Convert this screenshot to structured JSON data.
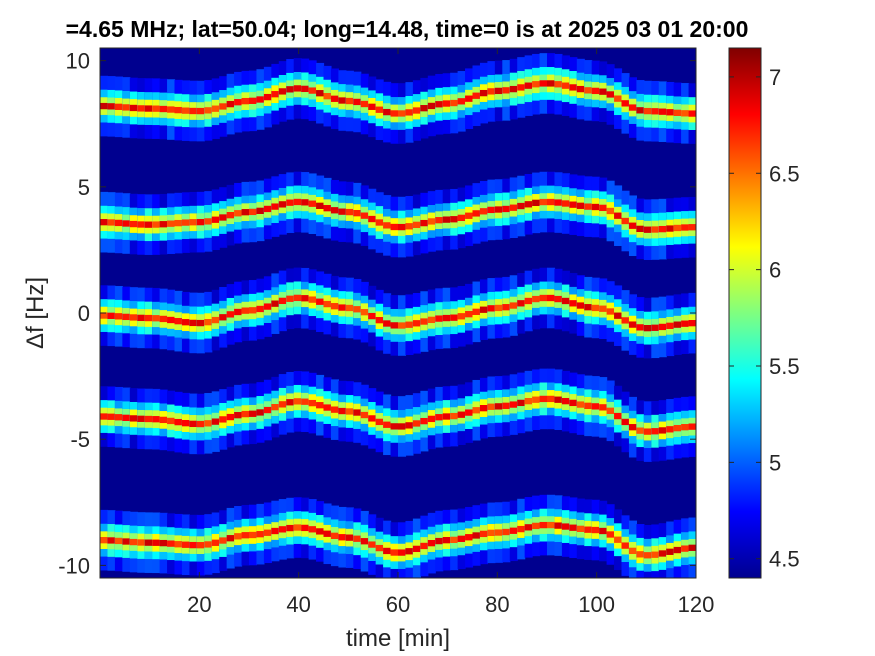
{
  "chart_data": {
    "type": "heatmap",
    "title": "=4.65 MHz;  lat=50.04; long=14.48, time=0 is at 2025 03 01 20:00",
    "xlabel": "time [min]",
    "ylabel": "Δf [Hz]",
    "xlim": [
      0,
      120
    ],
    "ylim": [
      -10.5,
      10.5
    ],
    "x_ticks": [
      20,
      40,
      60,
      80,
      100,
      120
    ],
    "y_ticks": [
      -10,
      -5,
      0,
      5,
      10
    ],
    "colorbar": {
      "colormap": "jet",
      "limits": [
        4.4,
        7.15
      ],
      "ticks": [
        4.5,
        5,
        5.5,
        6,
        6.5,
        7
      ]
    },
    "background_level": 4.4,
    "series": [
      {
        "values": [
          [
            0,
            8.2
          ],
          [
            10,
            8.1
          ],
          [
            20,
            8.0
          ],
          [
            30,
            8.4
          ],
          [
            40,
            8.9
          ],
          [
            50,
            8.4
          ],
          [
            60,
            7.9
          ],
          [
            70,
            8.3
          ],
          [
            80,
            8.8
          ],
          [
            90,
            9.1
          ],
          [
            100,
            8.8
          ],
          [
            110,
            8.0
          ],
          [
            120,
            7.9
          ]
        ]
      },
      {
        "values": [
          [
            0,
            3.6
          ],
          [
            10,
            3.5
          ],
          [
            20,
            3.6
          ],
          [
            30,
            4.0
          ],
          [
            40,
            4.4
          ],
          [
            50,
            4.0
          ],
          [
            60,
            3.4
          ],
          [
            70,
            3.7
          ],
          [
            80,
            4.1
          ],
          [
            90,
            4.4
          ],
          [
            100,
            4.2
          ],
          [
            110,
            3.3
          ],
          [
            120,
            3.4
          ]
        ]
      },
      {
        "values": [
          [
            0,
            -0.1
          ],
          [
            10,
            -0.2
          ],
          [
            20,
            -0.4
          ],
          [
            30,
            0.1
          ],
          [
            40,
            0.6
          ],
          [
            50,
            0.2
          ],
          [
            60,
            -0.5
          ],
          [
            70,
            -0.2
          ],
          [
            80,
            0.2
          ],
          [
            90,
            0.6
          ],
          [
            100,
            0.2
          ],
          [
            110,
            -0.6
          ],
          [
            120,
            -0.4
          ]
        ]
      },
      {
        "values": [
          [
            0,
            -4.1
          ],
          [
            10,
            -4.2
          ],
          [
            20,
            -4.4
          ],
          [
            30,
            -4.0
          ],
          [
            40,
            -3.5
          ],
          [
            50,
            -3.9
          ],
          [
            60,
            -4.5
          ],
          [
            70,
            -4.1
          ],
          [
            80,
            -3.7
          ],
          [
            90,
            -3.4
          ],
          [
            100,
            -3.7
          ],
          [
            110,
            -4.7
          ],
          [
            120,
            -4.5
          ]
        ]
      },
      {
        "values": [
          [
            0,
            -9.0
          ],
          [
            10,
            -9.1
          ],
          [
            20,
            -9.2
          ],
          [
            30,
            -8.8
          ],
          [
            40,
            -8.5
          ],
          [
            50,
            -8.9
          ],
          [
            60,
            -9.5
          ],
          [
            70,
            -9.0
          ],
          [
            80,
            -8.7
          ],
          [
            90,
            -8.4
          ],
          [
            100,
            -8.6
          ],
          [
            110,
            -9.6
          ],
          [
            120,
            -9.3
          ]
        ]
      }
    ]
  }
}
